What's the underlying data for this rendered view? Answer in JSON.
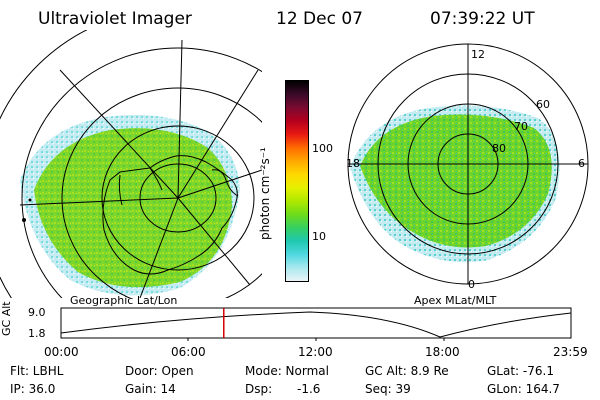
{
  "header": {
    "instrument": "Ultraviolet Imager",
    "date": "12 Dec 07",
    "time": "07:39:22 UT"
  },
  "geo_map": {
    "label": "Geographic Lat/Lon"
  },
  "apex_map": {
    "label": "Apex MLat/MLT",
    "mlt_labels": [
      "12",
      "18",
      "6",
      "0"
    ],
    "lat_labels": [
      "60",
      "70",
      "80"
    ]
  },
  "colorbar": {
    "label": "photon cm⁻²s⁻¹",
    "ticks": [
      "100",
      "10"
    ],
    "colors": [
      "#000000",
      "#3a0a2a",
      "#7a0a30",
      "#b4001e",
      "#e81a12",
      "#ff6a00",
      "#ffa800",
      "#ffd800",
      "#e6f000",
      "#b0e800",
      "#6edc1a",
      "#36d060",
      "#20c8b0",
      "#50d8e0",
      "#a8e8ee",
      "#e8f4f6"
    ]
  },
  "altitude_plot": {
    "ylabel": "GC Alt",
    "ymax": "9.0",
    "ymin": "1.8",
    "xticks": [
      "00:00",
      "06:00",
      "12:00",
      "18:00",
      "23:59"
    ],
    "cursor_time_hours": 7.66
  },
  "info": {
    "filter": "Flt: LBHL",
    "ip": "IP: 36.0",
    "door": "Door: Open",
    "gain": "Gain: 14",
    "mode": "Mode: Normal",
    "dsp": "Dsp:",
    "dsp_value": "-1.6",
    "gc_alt": "GC Alt: 8.9 Re",
    "seq": "Seq: 39",
    "glat": "GLat: -76.1",
    "glon": "GLon: 164.7"
  }
}
